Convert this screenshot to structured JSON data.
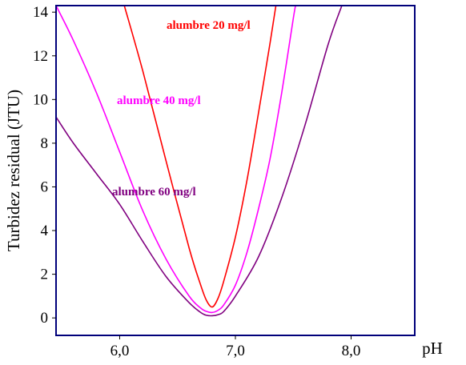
{
  "chart_data": {
    "type": "line",
    "xlabel": "pH",
    "ylabel": "Turbidez residual (JTU)",
    "xlim": [
      5.45,
      8.55
    ],
    "ylim": [
      -0.8,
      14.3
    ],
    "x_ticks": [
      6.0,
      7.0,
      8.0
    ],
    "x_tick_labels": [
      "6,0",
      "7,0",
      "8,0"
    ],
    "y_ticks": [
      0,
      2,
      4,
      6,
      8,
      10,
      12,
      14
    ],
    "y_tick_labels": [
      "0",
      "2",
      "4",
      "6",
      "8",
      "10",
      "12",
      "14"
    ],
    "grid": false,
    "series": [
      {
        "name": "alumbre 20 mg/l",
        "color": "#ff0000",
        "x": [
          6.04,
          6.2,
          6.4,
          6.6,
          6.7,
          6.75,
          6.8,
          6.85,
          6.9,
          7.0,
          7.1,
          7.2,
          7.3,
          7.35
        ],
        "y": [
          14.3,
          11.3,
          7.2,
          3.2,
          1.5,
          0.8,
          0.5,
          0.9,
          1.7,
          3.7,
          6.3,
          9.4,
          12.6,
          14.3
        ]
      },
      {
        "name": "alumbre 40 mg/l",
        "color": "#ff00ff",
        "x": [
          5.45,
          5.6,
          5.8,
          6.0,
          6.2,
          6.4,
          6.6,
          6.7,
          6.75,
          6.8,
          6.85,
          6.9,
          7.0,
          7.1,
          7.2,
          7.3,
          7.4,
          7.5,
          7.52
        ],
        "y": [
          14.3,
          12.7,
          10.3,
          7.6,
          4.9,
          2.7,
          1.0,
          0.45,
          0.3,
          0.25,
          0.35,
          0.6,
          1.5,
          3.0,
          5.0,
          7.3,
          10.3,
          13.7,
          14.3
        ]
      },
      {
        "name": "alumbre 60 mg/l",
        "color": "#800080",
        "x": [
          5.45,
          5.6,
          5.8,
          6.0,
          6.2,
          6.4,
          6.6,
          6.7,
          6.75,
          6.8,
          6.85,
          6.9,
          7.0,
          7.2,
          7.4,
          7.6,
          7.8,
          7.92
        ],
        "y": [
          9.2,
          8.0,
          6.6,
          5.2,
          3.5,
          1.9,
          0.7,
          0.25,
          0.12,
          0.1,
          0.15,
          0.3,
          1.0,
          2.8,
          5.5,
          8.8,
          12.5,
          14.3
        ]
      }
    ]
  }
}
